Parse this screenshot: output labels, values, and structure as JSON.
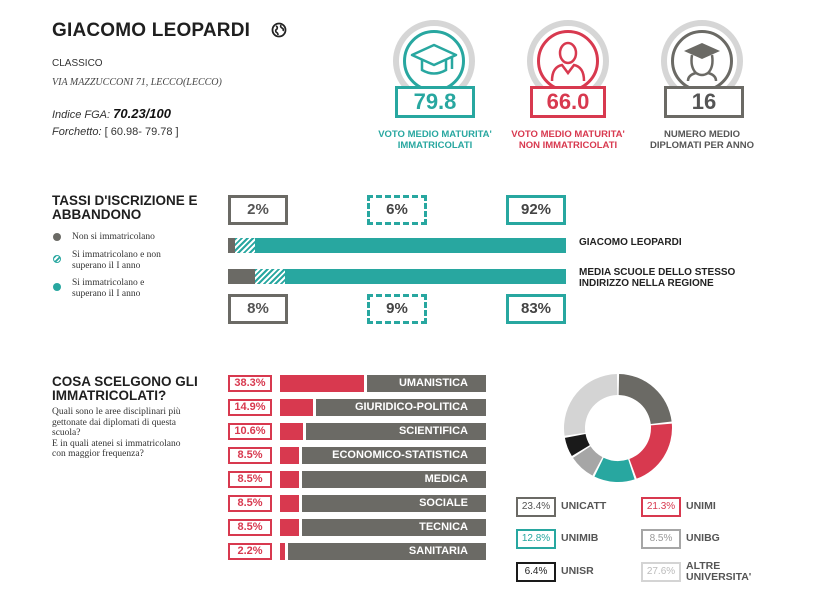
{
  "header": {
    "school_name": "GIACOMO LEOPARDI",
    "school_type": "CLASSICO",
    "address": "VIA MAZZUCCONI 71, LECCO(LECCO)",
    "fga_label": "Indice FGA:",
    "fga_value": "70.23/100",
    "range_label": "Forchetto:",
    "range_value": "[ 60.98- 79.78 ]",
    "globe_icon": "globe-icon"
  },
  "stats": [
    {
      "value": "79.8",
      "label_line1": "VOTO MEDIO MATURITA'",
      "label_line2": "IMMATRICOLATI",
      "icon": "graduation-cap-icon",
      "color": "#28a7a0"
    },
    {
      "value": "66.0",
      "label_line1": "VOTO MEDIO MATURITA'",
      "label_line2": "NON IMMATRICOLATI",
      "icon": "person-icon",
      "color": "#d8394f"
    },
    {
      "value": "16",
      "label_line1": "NUMERO MEDIO",
      "label_line2": "DIPLOMATI PER ANNO",
      "icon": "graduate-icon",
      "color": "#6b6a65"
    }
  ],
  "enrollment": {
    "title_line1": "TASSI D'ISCRIZIONE E",
    "title_line2": "ABBANDONO",
    "legend": [
      {
        "line1": "Non si immatricolano",
        "line2": "",
        "color": "#6b6a65"
      },
      {
        "line1": "Si immatricolano e non",
        "line2": "superano il I anno",
        "color": "#28a7a0"
      },
      {
        "line1": "Si immatricolano e",
        "line2": "superano il I anno",
        "color": "#28a7a0"
      }
    ],
    "school": {
      "label": "GIACOMO LEOPARDI",
      "pct": [
        "2%",
        "6%",
        "92%"
      ],
      "values": [
        2,
        6,
        92
      ]
    },
    "region": {
      "label_line1": "MEDIA SCUOLE DELLO STESSO",
      "label_line2": "INDIRIZZO NELLA REGIONE",
      "pct": [
        "8%",
        "9%",
        "83%"
      ],
      "values": [
        8,
        9,
        83
      ]
    }
  },
  "choices": {
    "title_line1": "COSA SCELGONO GLI",
    "title_line2": "IMMATRICOLATI?",
    "desc_lines": [
      "Quali sono le aree disciplinari più",
      "gettonate dai diplomati di questa",
      "scuola?",
      "E in quali atenei si immatricolano",
      "con maggior frequenza?"
    ],
    "rows": [
      {
        "pct": "38.3%",
        "value": 38.3,
        "label": "UMANISTICA"
      },
      {
        "pct": "14.9%",
        "value": 14.9,
        "label": "GIURIDICO-POLITICA"
      },
      {
        "pct": "10.6%",
        "value": 10.6,
        "label": "SCIENTIFICA"
      },
      {
        "pct": "8.5%",
        "value": 8.5,
        "label": "ECONOMICO-STATISTICA"
      },
      {
        "pct": "8.5%",
        "value": 8.5,
        "label": "MEDICA"
      },
      {
        "pct": "8.5%",
        "value": 8.5,
        "label": "SOCIALE"
      },
      {
        "pct": "8.5%",
        "value": 8.5,
        "label": "TECNICA"
      },
      {
        "pct": "2.2%",
        "value": 2.2,
        "label": "SANITARIA"
      }
    ]
  },
  "universities": [
    {
      "pct": "23.4%",
      "value": 23.4,
      "label_line1": "UNICATT",
      "label_line2": "",
      "color": "#6b6a65"
    },
    {
      "pct": "21.3%",
      "value": 21.3,
      "label_line1": "UNIMI",
      "label_line2": "",
      "color": "#d8394f"
    },
    {
      "pct": "12.8%",
      "value": 12.8,
      "label_line1": "UNIMIB",
      "label_line2": "",
      "color": "#28a7a0"
    },
    {
      "pct": "8.5%",
      "value": 8.5,
      "label_line1": "UNIBG",
      "label_line2": "",
      "color": "#a6a6a6"
    },
    {
      "pct": "6.4%",
      "value": 6.4,
      "label_line1": "UNISR",
      "label_line2": "",
      "color": "#1a1a1a"
    },
    {
      "pct": "27.6%",
      "value": 27.6,
      "label_line1": "ALTRE",
      "label_line2": "UNIVERSITA'",
      "color": "#d4d4d4"
    }
  ],
  "colors": {
    "teal": "#28a7a0",
    "red": "#d8394f",
    "grey": "#6b6a65",
    "light_grey": "#d6d6d6"
  }
}
